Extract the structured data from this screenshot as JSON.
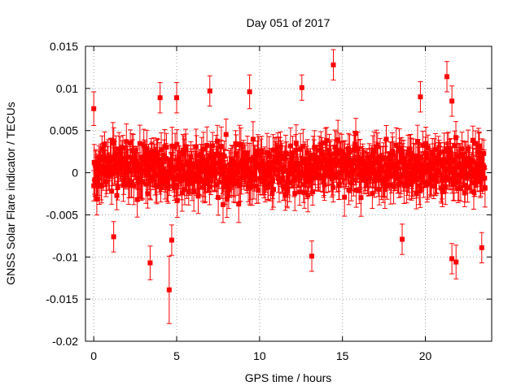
{
  "chart_data": {
    "type": "scatter",
    "title": "Day 051 of 2017",
    "xlabel": "GPS time / hours",
    "ylabel": "GNSS Solar Flare indicator / TECUs",
    "xlim": [
      -0.5,
      24.0
    ],
    "ylim": [
      -0.02,
      0.015
    ],
    "xticks": [
      0,
      5,
      10,
      15,
      20
    ],
    "xtick_labels": [
      "0",
      "5",
      "10",
      "15",
      "20"
    ],
    "yticks": [
      -0.02,
      -0.015,
      -0.01,
      -0.005,
      0,
      0.005,
      0.01,
      0.015
    ],
    "ytick_labels": [
      "-0.02",
      "-0.015",
      "-0.01",
      "-0.005",
      "0",
      "0.005",
      "0.01",
      "0.015"
    ],
    "grid": true,
    "marker_color": "#ff0000",
    "series": [
      {
        "name": "Solar flare indicator",
        "x_start": 0.0,
        "x_end": 23.6,
        "n_points": 900,
        "typical_spread": 0.0025,
        "typical_error": 0.0018
      }
    ],
    "notable_points": [
      {
        "x": 14.45,
        "y": 0.0128,
        "err": 0.0018
      },
      {
        "x": 21.3,
        "y": 0.0114,
        "err": 0.0018
      },
      {
        "x": 12.55,
        "y": 0.0101,
        "err": 0.0015
      },
      {
        "x": 4.55,
        "y": -0.0139,
        "err": 0.004
      },
      {
        "x": 3.4,
        "y": -0.0107,
        "err": 0.002
      },
      {
        "x": 13.15,
        "y": -0.0099,
        "err": 0.0018
      },
      {
        "x": 21.85,
        "y": -0.0106,
        "err": 0.002
      },
      {
        "x": 21.6,
        "y": -0.0102,
        "err": 0.0018
      },
      {
        "x": 23.4,
        "y": -0.0089,
        "err": 0.0018
      },
      {
        "x": 0.0,
        "y": 0.0076,
        "err": 0.002
      },
      {
        "x": 5.0,
        "y": 0.0089,
        "err": 0.0018
      },
      {
        "x": 7.0,
        "y": 0.0097,
        "err": 0.0018
      },
      {
        "x": 9.4,
        "y": 0.0096,
        "err": 0.002
      },
      {
        "x": 4.0,
        "y": 0.0089,
        "err": 0.0018
      },
      {
        "x": 21.6,
        "y": 0.0085,
        "err": 0.0018
      },
      {
        "x": 19.7,
        "y": 0.009,
        "err": 0.0018
      },
      {
        "x": 1.2,
        "y": -0.0076,
        "err": 0.0018
      },
      {
        "x": 4.7,
        "y": -0.008,
        "err": 0.0018
      },
      {
        "x": 18.6,
        "y": -0.0079,
        "err": 0.0018
      }
    ]
  }
}
